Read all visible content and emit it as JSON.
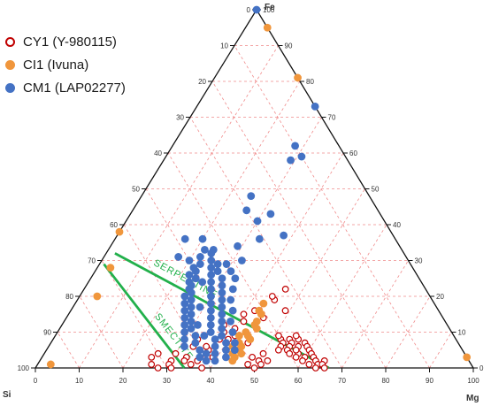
{
  "chart_data": {
    "type": "scatter",
    "subtype": "ternary",
    "axes": {
      "top": "Fe",
      "left": "Si",
      "right": "Mg",
      "range": [
        0,
        100
      ],
      "ticks": [
        0,
        10,
        20,
        30,
        40,
        50,
        60,
        70,
        80,
        90,
        100
      ],
      "grid": true
    },
    "legend": {
      "position": "top-left",
      "entries": [
        {
          "label": "CY1 (Y-980115)",
          "marker": "open-circle",
          "color": "#c00000"
        },
        {
          "label": "CI1 (Ivuna)",
          "marker": "filled-circle",
          "color": "#f0963c"
        },
        {
          "label": "CM1 (LAP02277)",
          "marker": "filled-circle",
          "color": "#4472c4"
        }
      ]
    },
    "reference_lines": [
      {
        "label": "SERPENTINE",
        "color": "#22b04b",
        "from": {
          "fe": 32,
          "mg": 2
        },
        "to": {
          "fe": 0,
          "mg": 67
        }
      },
      {
        "label": "SMECTITE",
        "color": "#22b04b",
        "from": {
          "fe": 29,
          "mg": 1
        },
        "to": {
          "fe": 0,
          "mg": 34
        }
      }
    ],
    "series": [
      {
        "name": "CY1 (Y-980115)",
        "style": "open",
        "color": "#c00000",
        "points": [
          {
            "fe": 22,
            "mg": 46
          },
          {
            "fe": 19,
            "mg": 45
          },
          {
            "fe": 20,
            "mg": 44
          },
          {
            "fe": 16,
            "mg": 42
          },
          {
            "fe": 15,
            "mg": 40
          },
          {
            "fe": 16,
            "mg": 49
          },
          {
            "fe": 14,
            "mg": 45
          },
          {
            "fe": 13,
            "mg": 41
          },
          {
            "fe": 12,
            "mg": 37
          },
          {
            "fe": 9,
            "mg": 41
          },
          {
            "fe": 8,
            "mg": 40
          },
          {
            "fe": 6,
            "mg": 41
          },
          {
            "fe": 4,
            "mg": 39
          },
          {
            "fe": 3,
            "mg": 39
          },
          {
            "fe": 2,
            "mg": 38
          },
          {
            "fe": 5,
            "mg": 44
          },
          {
            "fe": 7,
            "mg": 45
          },
          {
            "fe": 3,
            "mg": 44
          },
          {
            "fe": 9,
            "mg": 38
          },
          {
            "fe": 11,
            "mg": 40
          },
          {
            "fe": 10,
            "mg": 43
          },
          {
            "fe": 8,
            "mg": 33
          },
          {
            "fe": 6,
            "mg": 33
          },
          {
            "fe": 3,
            "mg": 33
          },
          {
            "fe": 2,
            "mg": 33
          },
          {
            "fe": 5,
            "mg": 37
          },
          {
            "fe": 0,
            "mg": 38
          },
          {
            "fe": 4,
            "mg": 26
          },
          {
            "fe": 3,
            "mg": 25
          },
          {
            "fe": 1,
            "mg": 26
          },
          {
            "fe": 0,
            "mg": 28
          },
          {
            "fe": 6,
            "mg": 36
          },
          {
            "fe": 4,
            "mg": 36
          },
          {
            "fe": 2,
            "mg": 36
          },
          {
            "fe": 1,
            "mg": 35
          },
          {
            "fe": 4,
            "mg": 30
          },
          {
            "fe": 2,
            "mg": 30
          },
          {
            "fe": 1,
            "mg": 30
          },
          {
            "fe": 0,
            "mg": 31
          },
          {
            "fe": 8,
            "mg": 38
          },
          {
            "fe": 7,
            "mg": 40
          },
          {
            "fe": 10,
            "mg": 38
          },
          {
            "fe": 8,
            "mg": 52
          },
          {
            "fe": 7,
            "mg": 53
          },
          {
            "fe": 8,
            "mg": 54
          },
          {
            "fe": 6,
            "mg": 53
          },
          {
            "fe": 7,
            "mg": 55
          },
          {
            "fe": 5,
            "mg": 53
          },
          {
            "fe": 6,
            "mg": 55
          },
          {
            "fe": 8,
            "mg": 56
          },
          {
            "fe": 5,
            "mg": 55
          },
          {
            "fe": 6,
            "mg": 57
          },
          {
            "fe": 7,
            "mg": 58
          },
          {
            "fe": 4,
            "mg": 56
          },
          {
            "fe": 6,
            "mg": 59
          },
          {
            "fe": 4,
            "mg": 58
          },
          {
            "fe": 3,
            "mg": 58
          },
          {
            "fe": 5,
            "mg": 60
          },
          {
            "fe": 3,
            "mg": 60
          },
          {
            "fe": 2,
            "mg": 60
          },
          {
            "fe": 4,
            "mg": 61
          },
          {
            "fe": 3,
            "mg": 62
          },
          {
            "fe": 1,
            "mg": 62
          },
          {
            "fe": 2,
            "mg": 63
          },
          {
            "fe": 1,
            "mg": 64
          },
          {
            "fe": 2,
            "mg": 65
          },
          {
            "fe": 1,
            "mg": 65
          },
          {
            "fe": 0,
            "mg": 64
          },
          {
            "fe": 0,
            "mg": 66
          },
          {
            "fe": 9,
            "mg": 55
          },
          {
            "fe": 5,
            "mg": 57
          },
          {
            "fe": 9,
            "mg": 51
          },
          {
            "fe": 2,
            "mg": 50
          },
          {
            "fe": 1,
            "mg": 51
          },
          {
            "fe": 3,
            "mg": 48
          },
          {
            "fe": 1,
            "mg": 48
          },
          {
            "fe": 4,
            "mg": 50
          },
          {
            "fe": 2,
            "mg": 52
          },
          {
            "fe": 0,
            "mg": 50
          }
        ]
      },
      {
        "name": "CI1 (Ivuna)",
        "style": "filled",
        "color": "#f0963c",
        "points": [
          {
            "fe": 95,
            "mg": 5
          },
          {
            "fe": 81,
            "mg": 19
          },
          {
            "fe": 38,
            "mg": 0
          },
          {
            "fe": 28,
            "mg": 3
          },
          {
            "fe": 20,
            "mg": 4
          },
          {
            "fe": 3,
            "mg": 97
          },
          {
            "fe": 1,
            "mg": 3
          },
          {
            "fe": 18,
            "mg": 43
          },
          {
            "fe": 16,
            "mg": 43
          },
          {
            "fe": 15,
            "mg": 44
          },
          {
            "fe": 12,
            "mg": 44
          },
          {
            "fe": 10,
            "mg": 43
          },
          {
            "fe": 9,
            "mg": 44
          },
          {
            "fe": 7,
            "mg": 43
          },
          {
            "fe": 6,
            "mg": 44
          },
          {
            "fe": 5,
            "mg": 44
          },
          {
            "fe": 4,
            "mg": 45
          },
          {
            "fe": 3,
            "mg": 44
          },
          {
            "fe": 8,
            "mg": 45
          },
          {
            "fe": 11,
            "mg": 45
          },
          {
            "fe": 13,
            "mg": 44
          },
          {
            "fe": 4,
            "mg": 43
          },
          {
            "fe": 2,
            "mg": 44
          },
          {
            "fe": 6,
            "mg": 42
          },
          {
            "fe": 9,
            "mg": 42
          }
        ]
      },
      {
        "name": "CM1 (LAP02277)",
        "style": "filled",
        "color": "#4472c4",
        "points": [
          {
            "fe": 100,
            "mg": 0
          },
          {
            "fe": 73,
            "mg": 27
          },
          {
            "fe": 62,
            "mg": 28
          },
          {
            "fe": 58,
            "mg": 29
          },
          {
            "fe": 59,
            "mg": 31
          },
          {
            "fe": 48,
            "mg": 25
          },
          {
            "fe": 44,
            "mg": 26
          },
          {
            "fe": 43,
            "mg": 32
          },
          {
            "fe": 41,
            "mg": 30
          },
          {
            "fe": 36,
            "mg": 16
          },
          {
            "fe": 36,
            "mg": 20
          },
          {
            "fe": 37,
            "mg": 38
          },
          {
            "fe": 36,
            "mg": 33
          },
          {
            "fe": 34,
            "mg": 29
          },
          {
            "fe": 33,
            "mg": 24
          },
          {
            "fe": 33,
            "mg": 22
          },
          {
            "fe": 31,
            "mg": 22
          },
          {
            "fe": 29,
            "mg": 23
          },
          {
            "fe": 27,
            "mg": 23
          },
          {
            "fe": 25,
            "mg": 24
          },
          {
            "fe": 23,
            "mg": 24
          },
          {
            "fe": 21,
            "mg": 25
          },
          {
            "fe": 19,
            "mg": 26
          },
          {
            "fe": 17,
            "mg": 27
          },
          {
            "fe": 15,
            "mg": 28
          },
          {
            "fe": 13,
            "mg": 29
          },
          {
            "fe": 11,
            "mg": 30
          },
          {
            "fe": 9,
            "mg": 32
          },
          {
            "fe": 7,
            "mg": 33
          },
          {
            "fe": 5,
            "mg": 35
          },
          {
            "fe": 3,
            "mg": 36
          },
          {
            "fe": 32,
            "mg": 24
          },
          {
            "fe": 30,
            "mg": 25
          },
          {
            "fe": 28,
            "mg": 26
          },
          {
            "fe": 26,
            "mg": 27
          },
          {
            "fe": 24,
            "mg": 28
          },
          {
            "fe": 22,
            "mg": 29
          },
          {
            "fe": 20,
            "mg": 30
          },
          {
            "fe": 18,
            "mg": 31
          },
          {
            "fe": 16,
            "mg": 32
          },
          {
            "fe": 14,
            "mg": 33
          },
          {
            "fe": 12,
            "mg": 34
          },
          {
            "fe": 10,
            "mg": 35
          },
          {
            "fe": 8,
            "mg": 37
          },
          {
            "fe": 6,
            "mg": 38
          },
          {
            "fe": 4,
            "mg": 39
          },
          {
            "fe": 29,
            "mg": 27
          },
          {
            "fe": 27,
            "mg": 28
          },
          {
            "fe": 25,
            "mg": 30
          },
          {
            "fe": 23,
            "mg": 31
          },
          {
            "fe": 21,
            "mg": 32
          },
          {
            "fe": 19,
            "mg": 33
          },
          {
            "fe": 17,
            "mg": 34
          },
          {
            "fe": 15,
            "mg": 35
          },
          {
            "fe": 13,
            "mg": 36
          },
          {
            "fe": 11,
            "mg": 37
          },
          {
            "fe": 9,
            "mg": 38
          },
          {
            "fe": 7,
            "mg": 40
          },
          {
            "fe": 5,
            "mg": 41
          },
          {
            "fe": 3,
            "mg": 42
          },
          {
            "fe": 28,
            "mg": 22
          },
          {
            "fe": 26,
            "mg": 22
          },
          {
            "fe": 24,
            "mg": 23
          },
          {
            "fe": 22,
            "mg": 24
          },
          {
            "fe": 20,
            "mg": 24
          },
          {
            "fe": 18,
            "mg": 25
          },
          {
            "fe": 16,
            "mg": 26
          },
          {
            "fe": 14,
            "mg": 27
          },
          {
            "fe": 12,
            "mg": 28
          },
          {
            "fe": 10,
            "mg": 29
          },
          {
            "fe": 8,
            "mg": 30
          },
          {
            "fe": 6,
            "mg": 31
          },
          {
            "fe": 27,
            "mg": 31
          },
          {
            "fe": 25,
            "mg": 33
          },
          {
            "fe": 22,
            "mg": 34
          },
          {
            "fe": 19,
            "mg": 35
          },
          {
            "fe": 16,
            "mg": 37
          },
          {
            "fe": 13,
            "mg": 38
          },
          {
            "fe": 10,
            "mg": 40
          },
          {
            "fe": 7,
            "mg": 42
          },
          {
            "fe": 5,
            "mg": 43
          },
          {
            "fe": 30,
            "mg": 20
          },
          {
            "fe": 31,
            "mg": 17
          },
          {
            "fe": 29,
            "mg": 29
          },
          {
            "fe": 30,
            "mg": 32
          },
          {
            "fe": 24,
            "mg": 26
          },
          {
            "fe": 17,
            "mg": 29
          },
          {
            "fe": 12,
            "mg": 31
          },
          {
            "fe": 9,
            "mg": 34
          },
          {
            "fe": 2,
            "mg": 40
          },
          {
            "fe": 2,
            "mg": 38
          },
          {
            "fe": 4,
            "mg": 37
          }
        ]
      }
    ]
  }
}
